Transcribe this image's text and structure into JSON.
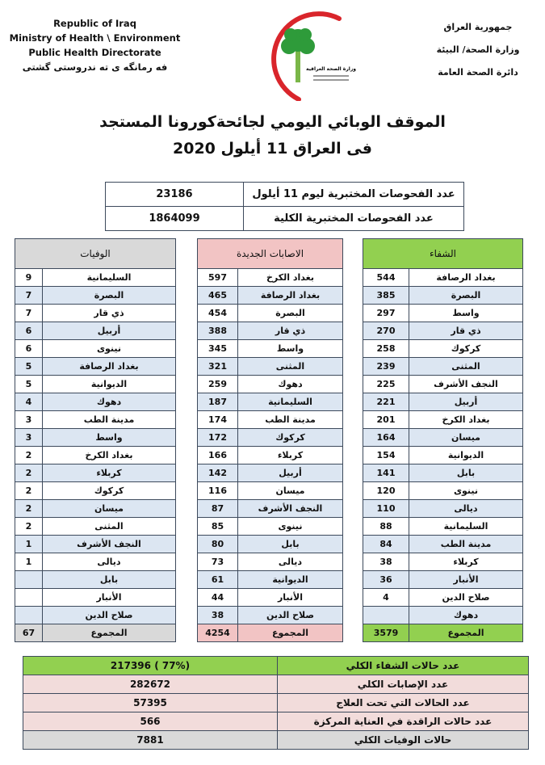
{
  "header_en": [
    "Republic of Iraq",
    "Ministry of Health \\ Environment",
    "Public Health Directorate",
    "فه رمانگه ی ته ندروستی گشتی"
  ],
  "header_ar": [
    "جمهورية العراق",
    "وزارة الصحة/ البيئة",
    "دائرة الصحة العامة"
  ],
  "logo_text": "وزارة الصحة العراقية",
  "title": {
    "line1": "الموقف الوبائي اليومي لجائحةكورونا المستجد",
    "line2": "فى العراق  11  أيلول 2020"
  },
  "tests": [
    {
      "label": "عدد الفحوصات المختبرية  ليوم 11 أيلول",
      "value": "23186"
    },
    {
      "label": "عدد الفحوصات المختبرية الكلية",
      "value": "1864099"
    }
  ],
  "colors": {
    "recovered": "#92d050",
    "cases": "#f2c4c4",
    "deaths": "#d9d9d9",
    "alt_row": "#dce6f2"
  },
  "recovered": {
    "header": "الشفاء",
    "rows": [
      [
        "بغداد الرصافة",
        "544"
      ],
      [
        "البصرة",
        "385"
      ],
      [
        "واسط",
        "297"
      ],
      [
        "ذي قار",
        "270"
      ],
      [
        "كركوك",
        "258"
      ],
      [
        "المثنى",
        "239"
      ],
      [
        "النجف الأشرف",
        "225"
      ],
      [
        "أربيل",
        "221"
      ],
      [
        "بغداد الكرخ",
        "201"
      ],
      [
        "ميسان",
        "164"
      ],
      [
        "الديوانية",
        "154"
      ],
      [
        "بابل",
        "141"
      ],
      [
        "نينوى",
        "120"
      ],
      [
        "ديالى",
        "110"
      ],
      [
        "السليمانية",
        "88"
      ],
      [
        "مدينة الطب",
        "84"
      ],
      [
        "كربلاء",
        "38"
      ],
      [
        "الأنبار",
        "36"
      ],
      [
        "صلاح الدين",
        "4"
      ],
      [
        "دهوك",
        ""
      ]
    ],
    "total_label": "المجموع",
    "total": "3579"
  },
  "cases": {
    "header": "الاصابات الجديدة",
    "rows": [
      [
        "بغداد الكرخ",
        "597"
      ],
      [
        "بغداد الرصافة",
        "465"
      ],
      [
        "البصرة",
        "454"
      ],
      [
        "ذي قار",
        "388"
      ],
      [
        "واسط",
        "345"
      ],
      [
        "المثنى",
        "321"
      ],
      [
        "دهوك",
        "259"
      ],
      [
        "السليمانية",
        "187"
      ],
      [
        "مدينة الطب",
        "174"
      ],
      [
        "كركوك",
        "172"
      ],
      [
        "كربلاء",
        "166"
      ],
      [
        "أربيل",
        "142"
      ],
      [
        "ميسان",
        "116"
      ],
      [
        "النجف الأشرف",
        "87"
      ],
      [
        "نينوى",
        "85"
      ],
      [
        "بابل",
        "80"
      ],
      [
        "ديالى",
        "73"
      ],
      [
        "الديوانية",
        "61"
      ],
      [
        "الأنبار",
        "44"
      ],
      [
        "صلاح الدين",
        "38"
      ]
    ],
    "total_label": "المجموع",
    "total": "4254"
  },
  "deaths": {
    "header": "الوفيات",
    "rows": [
      [
        "السليمانية",
        "9"
      ],
      [
        "البصرة",
        "7"
      ],
      [
        "ذي قار",
        "7"
      ],
      [
        "أربيل",
        "6"
      ],
      [
        "نينوى",
        "6"
      ],
      [
        "بغداد الرصافة",
        "5"
      ],
      [
        "الديوانية",
        "5"
      ],
      [
        "دهوك",
        "4"
      ],
      [
        "مدينة الطب",
        "3"
      ],
      [
        "واسط",
        "3"
      ],
      [
        "بغداد الكرخ",
        "2"
      ],
      [
        "كربلاء",
        "2"
      ],
      [
        "كركوك",
        "2"
      ],
      [
        "ميسان",
        "2"
      ],
      [
        "المثنى",
        "2"
      ],
      [
        "النجف الأشرف",
        "1"
      ],
      [
        "ديالى",
        "1"
      ],
      [
        "بابل",
        ""
      ],
      [
        "الأنبار",
        ""
      ],
      [
        "صلاح الدين",
        ""
      ]
    ],
    "total_label": "المجموع",
    "total": "67"
  },
  "summary": [
    {
      "label": "عدد حالات الشفاء الكلي",
      "value": "(77% )   217396",
      "color": "#92d050"
    },
    {
      "label": "عدد الإصابات الكلي",
      "value": "282672",
      "color": "#f2dcdb"
    },
    {
      "label": "عدد الحالات التي تحت العلاج",
      "value": "57395",
      "color": "#f2dcdb"
    },
    {
      "label": "عدد حالات الراقدة في العناية المركزة",
      "value": "566",
      "color": "#f2dcdb"
    },
    {
      "label": "حالات الوفيات الكلي",
      "value": "7881",
      "color": "#d9d9d9"
    }
  ]
}
